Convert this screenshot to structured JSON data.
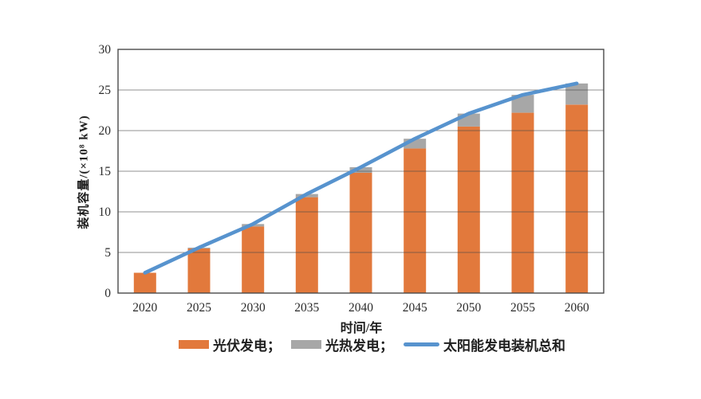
{
  "figure": {
    "background": "#ffffff"
  },
  "chart_data": {
    "type": "bar",
    "stacked": true,
    "title": "",
    "xlabel": "时间/年",
    "ylabel": "装机容量/(×10⁸ kW)",
    "categories": [
      "2020",
      "2025",
      "2030",
      "2035",
      "2040",
      "2045",
      "2050",
      "2055",
      "2060"
    ],
    "series": [
      {
        "name": "光伏发电",
        "type": "bar",
        "color": "#E2793C",
        "values": [
          2.5,
          5.5,
          8.2,
          11.8,
          14.8,
          17.8,
          20.5,
          22.2,
          23.2
        ]
      },
      {
        "name": "光热发电",
        "type": "bar",
        "color": "#A7A7A7",
        "values": [
          0,
          0.1,
          0.3,
          0.4,
          0.7,
          1.2,
          1.6,
          2.2,
          2.6
        ]
      },
      {
        "name": "太阳能发电装机总和",
        "type": "line",
        "color": "#5793CE",
        "values": [
          2.5,
          5.6,
          8.5,
          12.2,
          15.5,
          19.0,
          22.1,
          24.4,
          25.8
        ]
      }
    ],
    "ylim": [
      0,
      30
    ],
    "yticks": [
      0,
      5,
      10,
      15,
      20,
      25,
      30
    ],
    "grid": "horizontal",
    "legend_position": "bottom"
  },
  "axes": {
    "x_title": "时间/年",
    "y_title": "装机容量/(×10⁸ kW)"
  },
  "legend": {
    "items": [
      {
        "label": "光伏发电；",
        "swatch": "bar",
        "color": "#E2793C"
      },
      {
        "label": "光热发电；",
        "swatch": "bar",
        "color": "#A7A7A7"
      },
      {
        "label": "太阳能发电装机总和",
        "swatch": "line",
        "color": "#5793CE"
      }
    ]
  },
  "style": {
    "gridline_color": "rgba(70,70,70,0.6)",
    "axis_border_color": "#4a4a4a"
  }
}
